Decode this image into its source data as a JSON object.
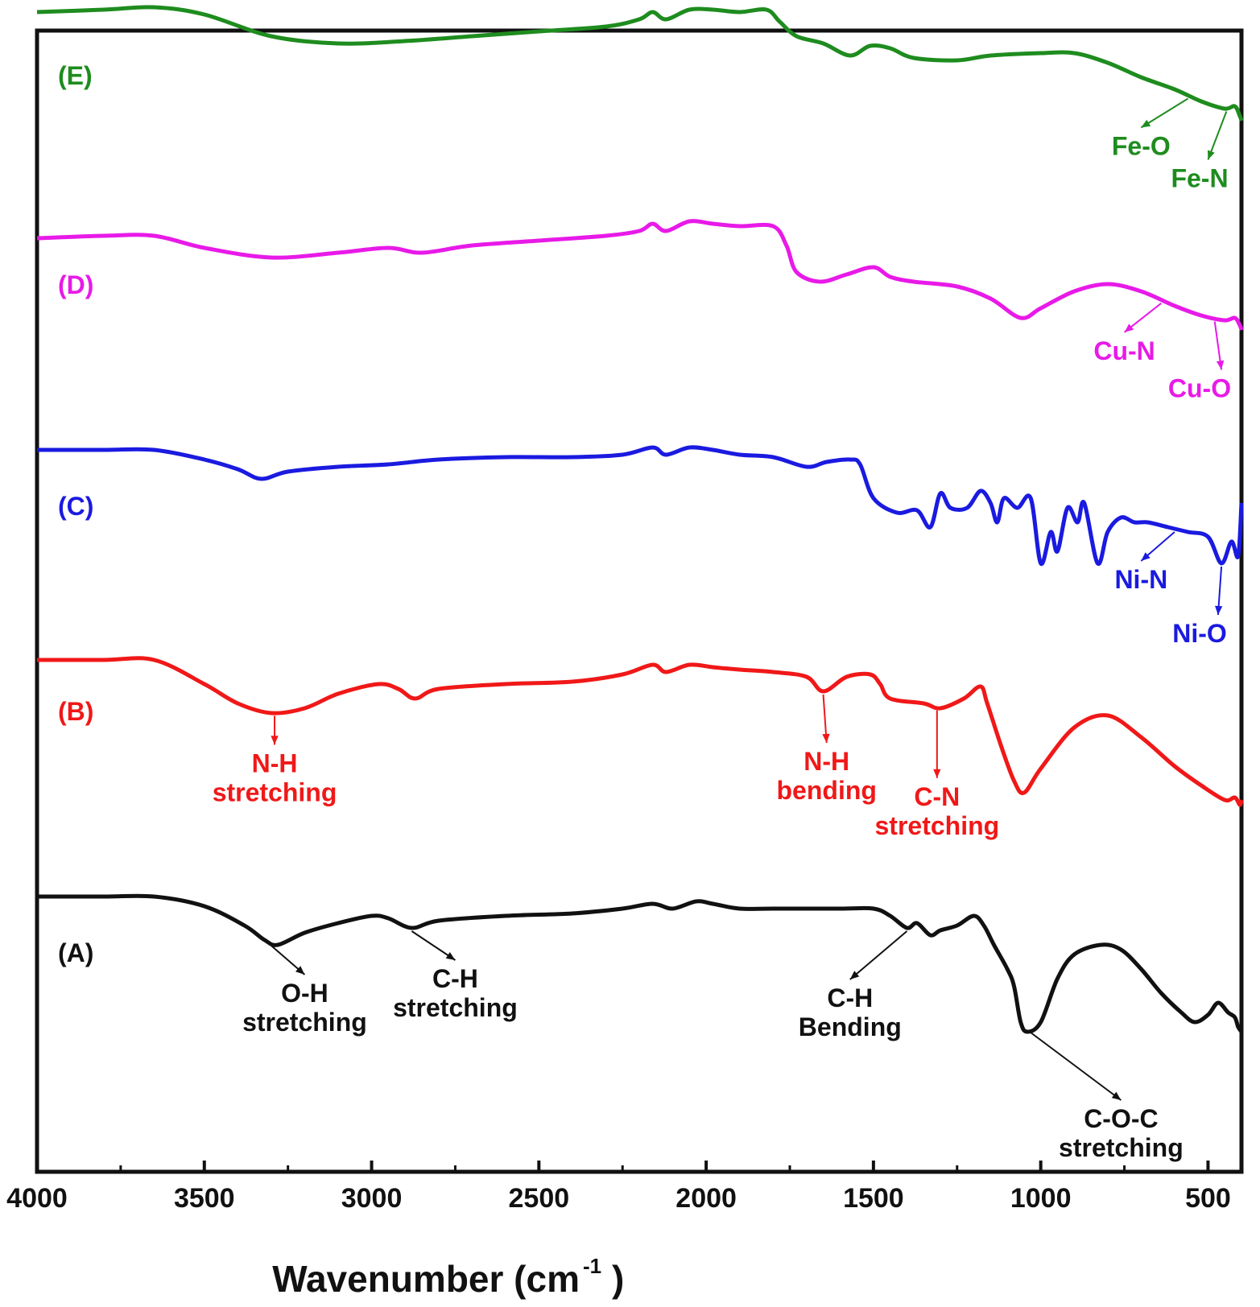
{
  "chart_data": {
    "type": "line",
    "title": "",
    "xlabel": "Wavenumber (cm",
    "xlabel_sup": "-1",
    "xlabel_close": ")",
    "ylabel": "",
    "xlim": [
      4000,
      400
    ],
    "x_reversed": true,
    "grid": false,
    "x_ticks": [
      4000,
      3500,
      3000,
      2500,
      2000,
      1500,
      1000,
      500
    ],
    "y_offset_units": "stacked transmittance (arbitrary)",
    "series": [
      {
        "name": "(E)",
        "color": "#1e8c1e",
        "offset": 8,
        "points": [
          [
            4000,
            95
          ],
          [
            3800,
            96
          ],
          [
            3650,
            97
          ],
          [
            3500,
            94
          ],
          [
            3300,
            85
          ],
          [
            3100,
            82
          ],
          [
            2900,
            83
          ],
          [
            2700,
            85
          ],
          [
            2500,
            87
          ],
          [
            2300,
            89
          ],
          [
            2200,
            92
          ],
          [
            2160,
            95
          ],
          [
            2120,
            92
          ],
          [
            2050,
            96
          ],
          [
            1980,
            96
          ],
          [
            1900,
            95
          ],
          [
            1820,
            96
          ],
          [
            1780,
            91
          ],
          [
            1730,
            85
          ],
          [
            1650,
            82
          ],
          [
            1570,
            77
          ],
          [
            1510,
            81
          ],
          [
            1450,
            80
          ],
          [
            1380,
            76
          ],
          [
            1250,
            75
          ],
          [
            1150,
            77
          ],
          [
            1000,
            78
          ],
          [
            900,
            78
          ],
          [
            800,
            74
          ],
          [
            700,
            68
          ],
          [
            600,
            63
          ],
          [
            520,
            58
          ],
          [
            450,
            55
          ],
          [
            420,
            56
          ],
          [
            405,
            52
          ],
          [
            400,
            50
          ]
        ]
      },
      {
        "name": "(D)",
        "color": "#e81ae8",
        "offset": 6,
        "points": [
          [
            4000,
            88
          ],
          [
            3800,
            89
          ],
          [
            3650,
            89
          ],
          [
            3500,
            84
          ],
          [
            3300,
            80
          ],
          [
            3100,
            82
          ],
          [
            2950,
            84
          ],
          [
            2850,
            82
          ],
          [
            2700,
            85
          ],
          [
            2500,
            87
          ],
          [
            2300,
            89
          ],
          [
            2200,
            91
          ],
          [
            2160,
            94
          ],
          [
            2120,
            91
          ],
          [
            2050,
            95
          ],
          [
            1980,
            94
          ],
          [
            1900,
            93
          ],
          [
            1800,
            93
          ],
          [
            1760,
            85
          ],
          [
            1730,
            74
          ],
          [
            1660,
            70
          ],
          [
            1580,
            73
          ],
          [
            1500,
            76
          ],
          [
            1450,
            72
          ],
          [
            1380,
            70
          ],
          [
            1250,
            68
          ],
          [
            1150,
            63
          ],
          [
            1060,
            55
          ],
          [
            1000,
            59
          ],
          [
            900,
            66
          ],
          [
            800,
            69
          ],
          [
            700,
            66
          ],
          [
            600,
            60
          ],
          [
            520,
            56
          ],
          [
            450,
            54
          ],
          [
            420,
            55
          ],
          [
            405,
            52
          ],
          [
            400,
            50
          ]
        ]
      },
      {
        "name": "(C)",
        "color": "#1a1ae0",
        "offset": 4,
        "points": [
          [
            4000,
            92
          ],
          [
            3800,
            92
          ],
          [
            3650,
            92
          ],
          [
            3500,
            88
          ],
          [
            3400,
            84
          ],
          [
            3330,
            80
          ],
          [
            3250,
            83
          ],
          [
            3100,
            85
          ],
          [
            2950,
            86
          ],
          [
            2800,
            88
          ],
          [
            2600,
            89
          ],
          [
            2400,
            89
          ],
          [
            2250,
            90
          ],
          [
            2160,
            93
          ],
          [
            2120,
            90
          ],
          [
            2050,
            93
          ],
          [
            1980,
            92
          ],
          [
            1900,
            90
          ],
          [
            1800,
            89
          ],
          [
            1700,
            85
          ],
          [
            1640,
            87
          ],
          [
            1570,
            88
          ],
          [
            1540,
            86
          ],
          [
            1500,
            72
          ],
          [
            1430,
            66
          ],
          [
            1370,
            67
          ],
          [
            1330,
            60
          ],
          [
            1300,
            74
          ],
          [
            1270,
            68
          ],
          [
            1220,
            68
          ],
          [
            1180,
            75
          ],
          [
            1150,
            70
          ],
          [
            1130,
            62
          ],
          [
            1110,
            72
          ],
          [
            1070,
            68
          ],
          [
            1030,
            72
          ],
          [
            1000,
            45
          ],
          [
            970,
            58
          ],
          [
            950,
            50
          ],
          [
            920,
            68
          ],
          [
            890,
            62
          ],
          [
            870,
            70
          ],
          [
            830,
            45
          ],
          [
            800,
            58
          ],
          [
            760,
            64
          ],
          [
            720,
            62
          ],
          [
            680,
            62
          ],
          [
            620,
            60
          ],
          [
            560,
            58
          ],
          [
            500,
            56
          ],
          [
            460,
            45
          ],
          [
            430,
            54
          ],
          [
            410,
            48
          ],
          [
            400,
            70
          ]
        ]
      },
      {
        "name": "(B)",
        "color": "#f01818",
        "offset": 2,
        "points": [
          [
            4000,
            90
          ],
          [
            3800,
            90
          ],
          [
            3650,
            90
          ],
          [
            3500,
            80
          ],
          [
            3400,
            72
          ],
          [
            3300,
            68
          ],
          [
            3200,
            70
          ],
          [
            3100,
            76
          ],
          [
            2980,
            80
          ],
          [
            2920,
            78
          ],
          [
            2870,
            74
          ],
          [
            2800,
            78
          ],
          [
            2600,
            80
          ],
          [
            2400,
            81
          ],
          [
            2250,
            84
          ],
          [
            2160,
            88
          ],
          [
            2120,
            85
          ],
          [
            2050,
            88
          ],
          [
            1980,
            87
          ],
          [
            1900,
            86
          ],
          [
            1800,
            85
          ],
          [
            1700,
            83
          ],
          [
            1650,
            77
          ],
          [
            1580,
            83
          ],
          [
            1510,
            84
          ],
          [
            1480,
            80
          ],
          [
            1450,
            74
          ],
          [
            1350,
            72
          ],
          [
            1300,
            70
          ],
          [
            1230,
            74
          ],
          [
            1180,
            79
          ],
          [
            1160,
            72
          ],
          [
            1120,
            55
          ],
          [
            1080,
            40
          ],
          [
            1050,
            35
          ],
          [
            1000,
            45
          ],
          [
            900,
            62
          ],
          [
            800,
            67
          ],
          [
            700,
            58
          ],
          [
            600,
            46
          ],
          [
            520,
            38
          ],
          [
            450,
            32
          ],
          [
            420,
            33
          ],
          [
            405,
            30
          ],
          [
            400,
            32
          ]
        ]
      },
      {
        "name": "(A)",
        "color": "#111111",
        "offset": 0,
        "points": [
          [
            4000,
            92
          ],
          [
            3800,
            92
          ],
          [
            3650,
            92
          ],
          [
            3500,
            88
          ],
          [
            3380,
            80
          ],
          [
            3320,
            74
          ],
          [
            3280,
            72
          ],
          [
            3200,
            77
          ],
          [
            3100,
            81
          ],
          [
            3000,
            84
          ],
          [
            2950,
            83
          ],
          [
            2880,
            79
          ],
          [
            2800,
            82
          ],
          [
            2600,
            84
          ],
          [
            2400,
            85
          ],
          [
            2250,
            87
          ],
          [
            2160,
            89
          ],
          [
            2100,
            87
          ],
          [
            2030,
            90
          ],
          [
            1980,
            89
          ],
          [
            1900,
            87
          ],
          [
            1800,
            87
          ],
          [
            1600,
            87
          ],
          [
            1500,
            87
          ],
          [
            1450,
            84
          ],
          [
            1400,
            79
          ],
          [
            1370,
            81
          ],
          [
            1330,
            76
          ],
          [
            1300,
            78
          ],
          [
            1250,
            80
          ],
          [
            1200,
            84
          ],
          [
            1170,
            80
          ],
          [
            1140,
            72
          ],
          [
            1100,
            62
          ],
          [
            1080,
            55
          ],
          [
            1060,
            40
          ],
          [
            1040,
            36
          ],
          [
            1000,
            40
          ],
          [
            950,
            58
          ],
          [
            900,
            68
          ],
          [
            820,
            72
          ],
          [
            760,
            70
          ],
          [
            700,
            62
          ],
          [
            640,
            52
          ],
          [
            580,
            44
          ],
          [
            540,
            40
          ],
          [
            500,
            43
          ],
          [
            470,
            48
          ],
          [
            440,
            44
          ],
          [
            420,
            42
          ],
          [
            410,
            38
          ],
          [
            400,
            36
          ]
        ]
      }
    ],
    "annotations": [
      {
        "series": "(A)",
        "lines": [
          "O-H",
          "stretching"
        ],
        "x": 3300,
        "color": "#111111",
        "text_x": 3200,
        "level": 0
      },
      {
        "series": "(A)",
        "lines": [
          "C-H",
          "stretching"
        ],
        "x": 2880,
        "color": "#111111",
        "text_x": 2750,
        "level": 0
      },
      {
        "series": "(A)",
        "lines": [
          "C-H",
          "Bending"
        ],
        "x": 1400,
        "color": "#111111",
        "text_x": 1570,
        "level": 1
      },
      {
        "series": "(A)",
        "lines": [
          "C-O-C",
          "stretching"
        ],
        "x": 1030,
        "color": "#111111",
        "text_x": 760,
        "level": 2
      },
      {
        "series": "(B)",
        "lines": [
          "N-H",
          "stretching"
        ],
        "x": 3290,
        "color": "#f01818",
        "text_x": 3290,
        "level": 0
      },
      {
        "series": "(B)",
        "lines": [
          "N-H",
          "bending"
        ],
        "x": 1650,
        "color": "#f01818",
        "text_x": 1640,
        "level": 1
      },
      {
        "series": "(B)",
        "lines": [
          "C-N",
          "stretching"
        ],
        "x": 1310,
        "color": "#f01818",
        "text_x": 1310,
        "level": 2
      },
      {
        "series": "(C)",
        "lines": [
          "Ni-N"
        ],
        "x": 600,
        "color": "#1a1ae0",
        "text_x": 700,
        "level": 0
      },
      {
        "series": "(C)",
        "lines": [
          "Ni-O"
        ],
        "x": 460,
        "color": "#1a1ae0",
        "text_x": 470,
        "level": 1
      },
      {
        "series": "(D)",
        "lines": [
          "Cu-N"
        ],
        "x": 640,
        "color": "#e81ae8",
        "text_x": 750,
        "level": 0
      },
      {
        "series": "(D)",
        "lines": [
          "Cu-O"
        ],
        "x": 480,
        "color": "#e81ae8",
        "text_x": 460,
        "level": 1
      },
      {
        "series": "(E)",
        "lines": [
          "Fe-O"
        ],
        "x": 560,
        "color": "#1e8c1e",
        "text_x": 700,
        "level": 0
      },
      {
        "series": "(E)",
        "lines": [
          "Fe-N"
        ],
        "x": 445,
        "color": "#1e8c1e",
        "text_x": 500,
        "level": 1
      }
    ]
  }
}
